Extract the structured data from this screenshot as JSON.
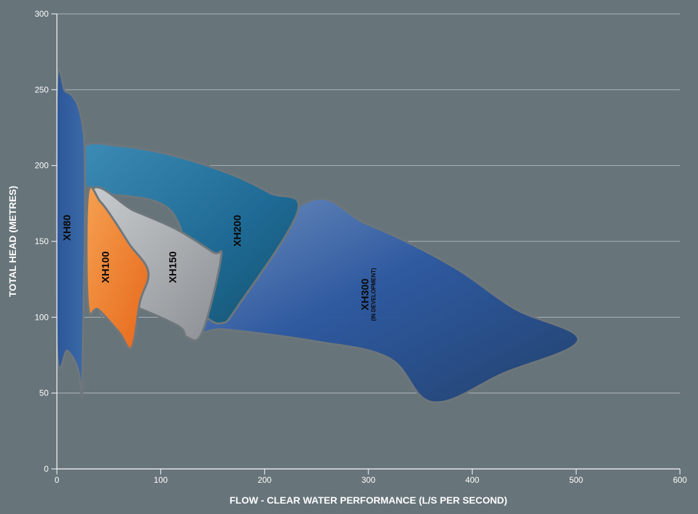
{
  "chart_data": {
    "type": "area",
    "xlabel": "FLOW - CLEAR WATER PERFORMANCE  (L/S PER SECOND)",
    "ylabel": "TOTAL HEAD (METRES)",
    "xlim": [
      0,
      600
    ],
    "ylim": [
      0,
      300
    ],
    "x_ticks": [
      "0",
      "100",
      "200",
      "300",
      "400",
      "500",
      "600"
    ],
    "y_ticks": [
      "0",
      "50",
      "100",
      "150",
      "200",
      "250",
      "300"
    ],
    "grid": "horizontal",
    "series": [
      {
        "name": "XH300",
        "sublabel": "(IN DEVELOPMENT)",
        "color": "#2c5aa0",
        "boundary": [
          [
            130,
            92
          ],
          [
            235,
            174
          ],
          [
            300,
            161
          ],
          [
            380,
            134
          ],
          [
            440,
            106
          ],
          [
            502,
            85
          ],
          [
            430,
            63
          ],
          [
            362,
            44
          ],
          [
            320,
            73
          ],
          [
            250,
            84
          ],
          [
            160,
            92
          ]
        ]
      },
      {
        "name": "XH200",
        "color": "#1f6d96",
        "boundary": [
          [
            26,
            212
          ],
          [
            60,
            213
          ],
          [
            110,
            207
          ],
          [
            165,
            195
          ],
          [
            205,
            182
          ],
          [
            232,
            170
          ],
          [
            175,
            108
          ],
          [
            158,
            96
          ],
          [
            140,
            102
          ],
          [
            130,
            110
          ],
          [
            110,
            170
          ],
          [
            30,
            185
          ]
        ]
      },
      {
        "name": "XH150",
        "color": "#a2a6aa",
        "boundary": [
          [
            32,
            182
          ],
          [
            75,
            170
          ],
          [
            115,
            158
          ],
          [
            150,
            143
          ],
          [
            158,
            139
          ],
          [
            140,
            90
          ],
          [
            125,
            87
          ],
          [
            115,
            95
          ],
          [
            60,
            110
          ],
          [
            40,
            105
          ]
        ]
      },
      {
        "name": "XH100",
        "color": "#f07a22",
        "boundary": [
          [
            30,
            181
          ],
          [
            42,
            176
          ],
          [
            55,
            164
          ],
          [
            70,
            148
          ],
          [
            88,
            130
          ],
          [
            80,
            110
          ],
          [
            72,
            80
          ],
          [
            60,
            90
          ],
          [
            40,
            105
          ],
          [
            30,
            108
          ]
        ]
      },
      {
        "name": "XH80",
        "color": "#2e5a9c",
        "boundary": [
          [
            0,
            250
          ],
          [
            8,
            249
          ],
          [
            16,
            245
          ],
          [
            22,
            236
          ],
          [
            26,
            220
          ],
          [
            27,
            200
          ],
          [
            27,
            160
          ],
          [
            26,
            120
          ],
          [
            25,
            80
          ],
          [
            24,
            48
          ],
          [
            22,
            60
          ],
          [
            18,
            70
          ],
          [
            10,
            78
          ],
          [
            0,
            80
          ]
        ]
      }
    ]
  }
}
